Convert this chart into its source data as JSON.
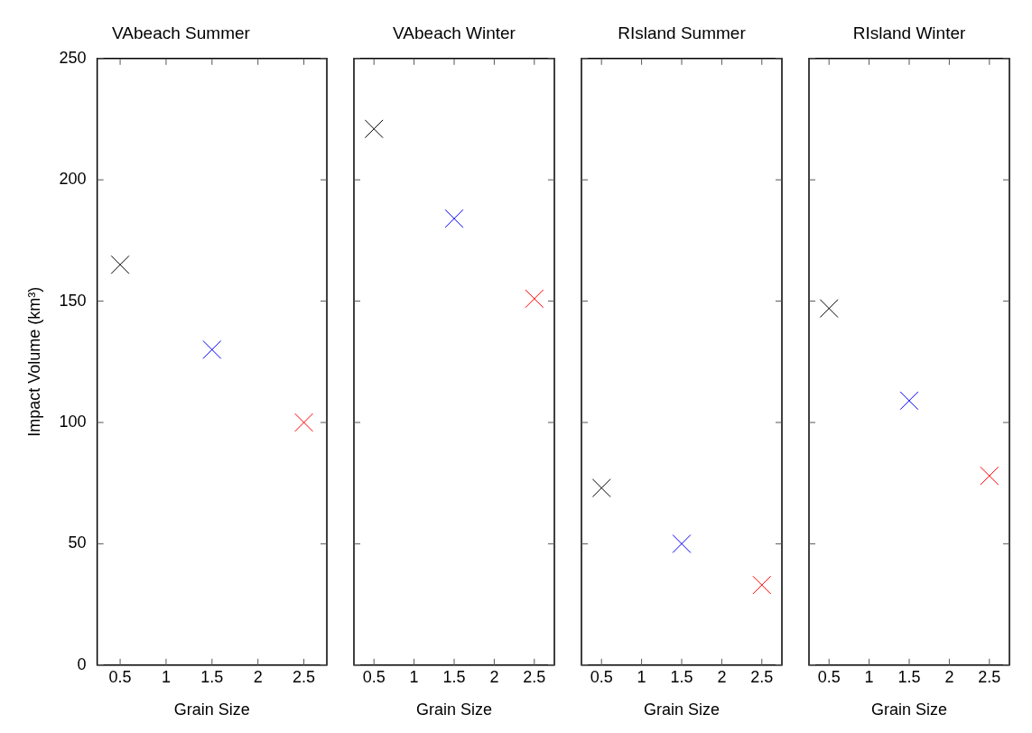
{
  "chart_data": [
    {
      "type": "scatter",
      "title": "VAbeach Summer",
      "xlabel": "Grain Size",
      "ylabel": "Impact Volume (km³)",
      "x": [
        0.5,
        1.5,
        2.5
      ],
      "values": [
        165,
        130,
        100
      ],
      "colors": [
        "#000000",
        "#0000ff",
        "#ff0000"
      ],
      "xlim": [
        0.25,
        2.75
      ],
      "xticks": [
        0.5,
        1,
        1.5,
        2,
        2.5
      ],
      "ylim": [
        0,
        250
      ],
      "yticks": [
        0,
        50,
        100,
        150,
        200,
        250
      ],
      "marker": "cross",
      "grid": false,
      "legend": false
    },
    {
      "type": "scatter",
      "title": "VAbeach Winter",
      "xlabel": "Grain Size",
      "x": [
        0.5,
        1.5,
        2.5
      ],
      "values": [
        221,
        184,
        151
      ],
      "colors": [
        "#000000",
        "#0000ff",
        "#ff0000"
      ],
      "xlim": [
        0.25,
        2.75
      ],
      "xticks": [
        0.5,
        1,
        1.5,
        2,
        2.5
      ],
      "ylim": [
        0,
        250
      ],
      "yticks": [
        0,
        50,
        100,
        150,
        200,
        250
      ],
      "marker": "cross",
      "grid": false,
      "legend": false,
      "tick_labels": "x"
    },
    {
      "type": "scatter",
      "title": "RIsland Summer",
      "xlabel": "Grain Size",
      "x": [
        0.5,
        1.5,
        2.5
      ],
      "values": [
        73,
        50,
        33
      ],
      "colors": [
        "#000000",
        "#0000ff",
        "#ff0000"
      ],
      "xlim": [
        0.25,
        2.75
      ],
      "xticks": [
        0.5,
        1,
        1.5,
        2,
        2.5
      ],
      "ylim": [
        0,
        250
      ],
      "yticks": [
        0,
        50,
        100,
        150,
        200,
        250
      ],
      "marker": "cross",
      "grid": false,
      "legend": false,
      "tick_labels": "x"
    },
    {
      "type": "scatter",
      "title": "RIsland Winter",
      "xlabel": "Grain Size",
      "x": [
        0.5,
        1.5,
        2.5
      ],
      "values": [
        147,
        109,
        78
      ],
      "colors": [
        "#000000",
        "#0000ff",
        "#ff0000"
      ],
      "xlim": [
        0.25,
        2.75
      ],
      "xticks": [
        0.5,
        1,
        1.5,
        2,
        2.5
      ],
      "ylim": [
        0,
        250
      ],
      "yticks": [
        0,
        50,
        100,
        150,
        200,
        250
      ],
      "marker": "cross",
      "grid": false,
      "legend": false,
      "tick_labels": "x"
    }
  ]
}
